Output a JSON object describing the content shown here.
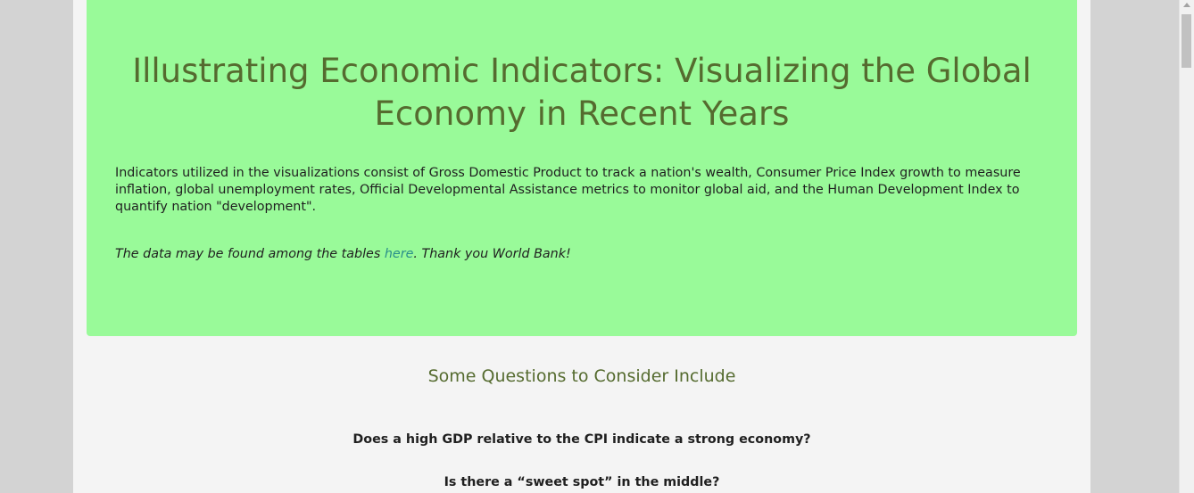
{
  "hero": {
    "title": "Illustrating Economic Indicators: Visualizing the Global Economy in Recent Years",
    "description": "Indicators utilized in the visualizations consist of Gross Domestic Product to track a nation's wealth, Consumer Price Index growth to measure inflation, global unemployment rates, Official Developmental Assistance metrics to monitor global aid, and the Human Development Index to quantify nation \"development\".",
    "note_prefix": "The data may be found among the tables ",
    "note_link": "here",
    "note_suffix": ". Thank you World Bank!"
  },
  "questions_section": {
    "title": "Some Questions to Consider Include",
    "items": [
      "Does a high GDP relative to the CPI indicate a strong economy?",
      "Is there a “sweet spot” in the middle?"
    ]
  },
  "colors": {
    "hero_background": "#99fa99",
    "heading": "#556b2f",
    "link": "#2a8f8a",
    "page_background": "#f4f4f4",
    "outer_background": "#d3d3d3"
  },
  "icons": {
    "scroll_up": "scroll-up-arrow-icon"
  }
}
